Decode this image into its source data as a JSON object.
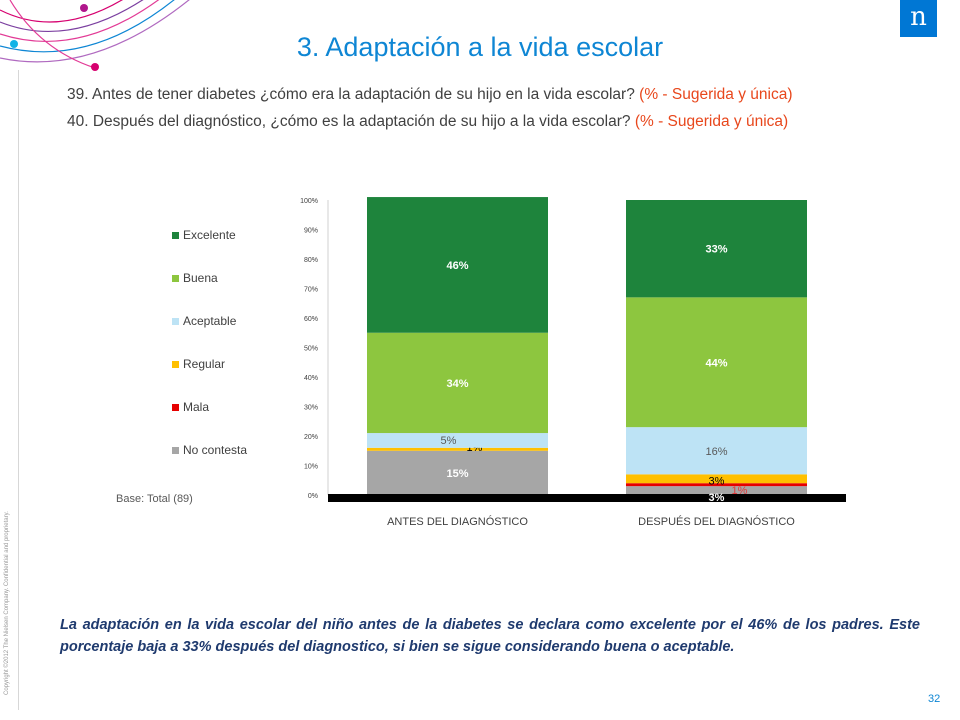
{
  "slide": {
    "title": "3. Adaptación a la vida escolar",
    "question1": {
      "text": "39. Antes de tener diabetes ¿cómo era la adaptación de su hijo en la vida escolar?",
      "highlight": "(% - Sugerida y única)"
    },
    "question2": {
      "text": "40. Después del diagnóstico, ¿cómo es la adaptación de su hijo a la vida escolar?",
      "highlight": "(% - Sugerida y única)"
    },
    "base_note": "Base: Total (89)",
    "conclusion": "La adaptación en la vida escolar del niño antes de la diabetes se declara como excelente por el 46% de los padres. Este porcentaje baja a 33% después del diagnostico, si bien se sigue considerando buena o aceptable.",
    "page_number": "32",
    "copyright": "Copyright ©2012 The Nielsen Company. Confidential and proprietary.",
    "logo_letter": "n"
  },
  "colors": {
    "title": "#0e86d4",
    "highlight": "#e8471c",
    "conclusion": "#1f3a6e",
    "logo": "#0077d4"
  },
  "chart_data": {
    "type": "bar",
    "stacked": true,
    "percent_stacked": true,
    "categories": [
      "ANTES DEL DIAGNÓSTICO",
      "DESPUÉS DEL DIAGNÓSTICO"
    ],
    "y_ticks": [
      "0%",
      "10%",
      "20%",
      "30%",
      "40%",
      "50%",
      "60%",
      "70%",
      "80%",
      "90%",
      "100%"
    ],
    "ylim": [
      0,
      100
    ],
    "legend_position": "left",
    "series": [
      {
        "name": "No contesta",
        "color": "#a6a6a6",
        "values": [
          15,
          3
        ],
        "labels": [
          "15%",
          "3%"
        ]
      },
      {
        "name": "Mala",
        "color": "#e60000",
        "values": [
          0,
          1
        ],
        "labels": [
          "",
          "1%"
        ]
      },
      {
        "name": "Regular",
        "color": "#ffc000",
        "values": [
          1,
          3
        ],
        "labels": [
          "1%",
          "3%"
        ]
      },
      {
        "name": "Aceptable",
        "color": "#bde3f5",
        "values": [
          5,
          16
        ],
        "labels": [
          "5%",
          "16%"
        ]
      },
      {
        "name": "Buena",
        "color": "#8dc63f",
        "values": [
          34,
          44
        ],
        "labels": [
          "34%",
          "44%"
        ]
      },
      {
        "name": "Excelente",
        "color": "#1e843c",
        "values": [
          46,
          33
        ],
        "labels": [
          "46%",
          "33%"
        ]
      }
    ],
    "legend_order": [
      "Excelente",
      "Buena",
      "Aceptable",
      "Regular",
      "Mala",
      "No contesta"
    ]
  }
}
